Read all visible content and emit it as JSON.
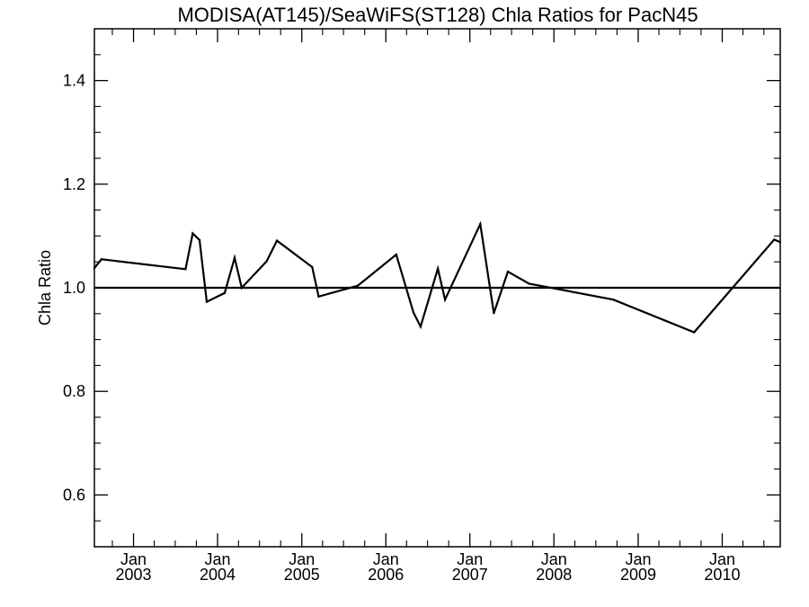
{
  "chart_data": {
    "type": "line",
    "title": "MODISA(AT145)/SeaWiFS(ST128)  Chla Ratios for PacN45",
    "xlabel": "",
    "ylabel": "Chla Ratio",
    "xlim": [
      "2002-07-15",
      "2010-09-10"
    ],
    "ylim": [
      0.5,
      1.5
    ],
    "grid": false,
    "legend": "none",
    "x_ticks": [
      {
        "month": "Jan",
        "year": "2003",
        "date": "2003-01-01"
      },
      {
        "month": "Jan",
        "year": "2004",
        "date": "2004-01-01"
      },
      {
        "month": "Jan",
        "year": "2005",
        "date": "2005-01-01"
      },
      {
        "month": "Jan",
        "year": "2006",
        "date": "2006-01-01"
      },
      {
        "month": "Jan",
        "year": "2007",
        "date": "2007-01-01"
      },
      {
        "month": "Jan",
        "year": "2008",
        "date": "2008-01-01"
      },
      {
        "month": "Jan",
        "year": "2009",
        "date": "2009-01-01"
      },
      {
        "month": "Jan",
        "year": "2010",
        "date": "2010-01-01"
      }
    ],
    "y_ticks": [
      "0.6",
      "0.8",
      "1.0",
      "1.2",
      "1.4"
    ],
    "reference_line": 1.0,
    "series": [
      {
        "color": "#000000",
        "points": [
          {
            "x": "2002-07-15",
            "y": 1.038
          },
          {
            "x": "2002-08-15",
            "y": 1.055
          },
          {
            "x": "2003-08-15",
            "y": 1.036
          },
          {
            "x": "2003-09-15",
            "y": 1.105
          },
          {
            "x": "2003-10-15",
            "y": 1.092
          },
          {
            "x": "2003-11-15",
            "y": 0.973
          },
          {
            "x": "2004-02-01",
            "y": 0.99
          },
          {
            "x": "2004-03-15",
            "y": 1.058
          },
          {
            "x": "2004-04-15",
            "y": 1.0
          },
          {
            "x": "2004-08-01",
            "y": 1.051
          },
          {
            "x": "2004-09-15",
            "y": 1.091
          },
          {
            "x": "2005-02-15",
            "y": 1.04
          },
          {
            "x": "2005-03-15",
            "y": 0.983
          },
          {
            "x": "2005-09-01",
            "y": 1.004
          },
          {
            "x": "2006-02-15",
            "y": 1.064
          },
          {
            "x": "2006-05-01",
            "y": 0.952
          },
          {
            "x": "2006-06-01",
            "y": 0.925
          },
          {
            "x": "2006-08-15",
            "y": 1.037
          },
          {
            "x": "2006-09-15",
            "y": 0.977
          },
          {
            "x": "2007-02-15",
            "y": 1.123
          },
          {
            "x": "2007-04-15",
            "y": 0.951
          },
          {
            "x": "2007-06-15",
            "y": 1.031
          },
          {
            "x": "2007-09-15",
            "y": 1.008
          },
          {
            "x": "2008-09-15",
            "y": 0.977
          },
          {
            "x": "2009-09-01",
            "y": 0.914
          },
          {
            "x": "2010-08-15",
            "y": 1.093
          },
          {
            "x": "2010-09-10",
            "y": 1.088
          }
        ]
      }
    ]
  }
}
